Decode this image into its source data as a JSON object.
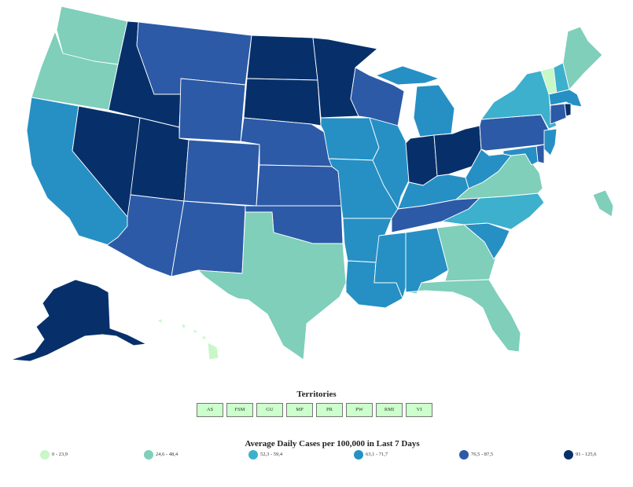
{
  "colors": {
    "c0": "#c8f7c8",
    "c1": "#7fcfba",
    "c2": "#3cb0cd",
    "c3": "#2690c4",
    "c4": "#2c5aa7",
    "c5": "#07306b"
  },
  "territories": {
    "title": "Territories",
    "items": [
      "AS",
      "FSM",
      "GU",
      "MP",
      "PR",
      "PW",
      "RMI",
      "VI"
    ]
  },
  "legend": {
    "title": "Average Daily Cases per 100,000 in Last 7 Days",
    "items": [
      {
        "label": "0 - 23,9",
        "color": "c0"
      },
      {
        "label": "24,6 - 48,4",
        "color": "c1"
      },
      {
        "label": "52,3 - 59,4",
        "color": "c2"
      },
      {
        "label": "63,1 - 71,7",
        "color": "c3"
      },
      {
        "label": "76,5 - 87,5",
        "color": "c4"
      },
      {
        "label": "91 - 125,6",
        "color": "c5"
      }
    ]
  },
  "states": {
    "WA": "c1",
    "OR": "c1",
    "CA": "c3",
    "NV": "c5",
    "ID": "c5",
    "MT": "c4",
    "WY": "c4",
    "UT": "c5",
    "AZ": "c4",
    "CO": "c4",
    "NM": "c4",
    "ND": "c5",
    "SD": "c5",
    "NE": "c4",
    "KS": "c4",
    "OK": "c4",
    "TX": "c1",
    "MN": "c5",
    "IA": "c3",
    "MO": "c3",
    "AR": "c3",
    "LA": "c3",
    "WI": "c4",
    "IL": "c3",
    "MI": "c3",
    "IN": "c5",
    "OH": "c5",
    "KY": "c3",
    "TN": "c4",
    "MS": "c3",
    "AL": "c3",
    "GA": "c1",
    "FL": "c1",
    "SC": "c3",
    "NC": "c2",
    "VA": "c1",
    "WV": "c3",
    "PA": "c4",
    "NY": "c2",
    "VT": "c0",
    "NH": "c2",
    "ME": "c1",
    "MA": "c3",
    "CT": "c4",
    "RI": "c5",
    "NJ": "c3",
    "DE": "c4",
    "MD": "c3",
    "AK": "c5",
    "HI": "c0",
    "PR": "c1"
  }
}
